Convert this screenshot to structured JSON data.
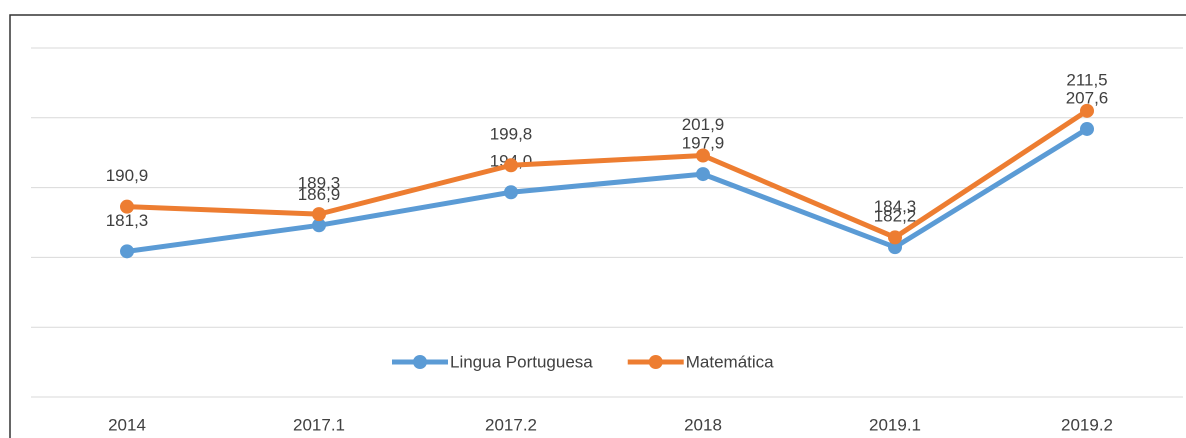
{
  "chart_data": {
    "type": "line",
    "categories": [
      "2014",
      "2017.1",
      "2017.2",
      "2018",
      "2019.1",
      "2019.2"
    ],
    "series": [
      {
        "name": "Lingua Portuguesa",
        "color": "#5b9bd5",
        "values": [
          181.3,
          186.9,
          194.0,
          197.9,
          182.2,
          207.6
        ],
        "value_labels": [
          "181,3",
          "186,9",
          "194,0",
          "197,9",
          "182,2",
          "207,6"
        ]
      },
      {
        "name": "Matemática",
        "color": "#ed7d31",
        "values": [
          190.9,
          189.3,
          199.8,
          201.9,
          184.3,
          211.5
        ],
        "value_labels": [
          "190,9",
          "189,3",
          "199,8",
          "201,9",
          "184,3",
          "211,5"
        ]
      }
    ],
    "ylim": [
      150,
      225
    ],
    "yticks": [
      150,
      165,
      180,
      195,
      210,
      225
    ],
    "grid": true,
    "legend": "bottom"
  }
}
